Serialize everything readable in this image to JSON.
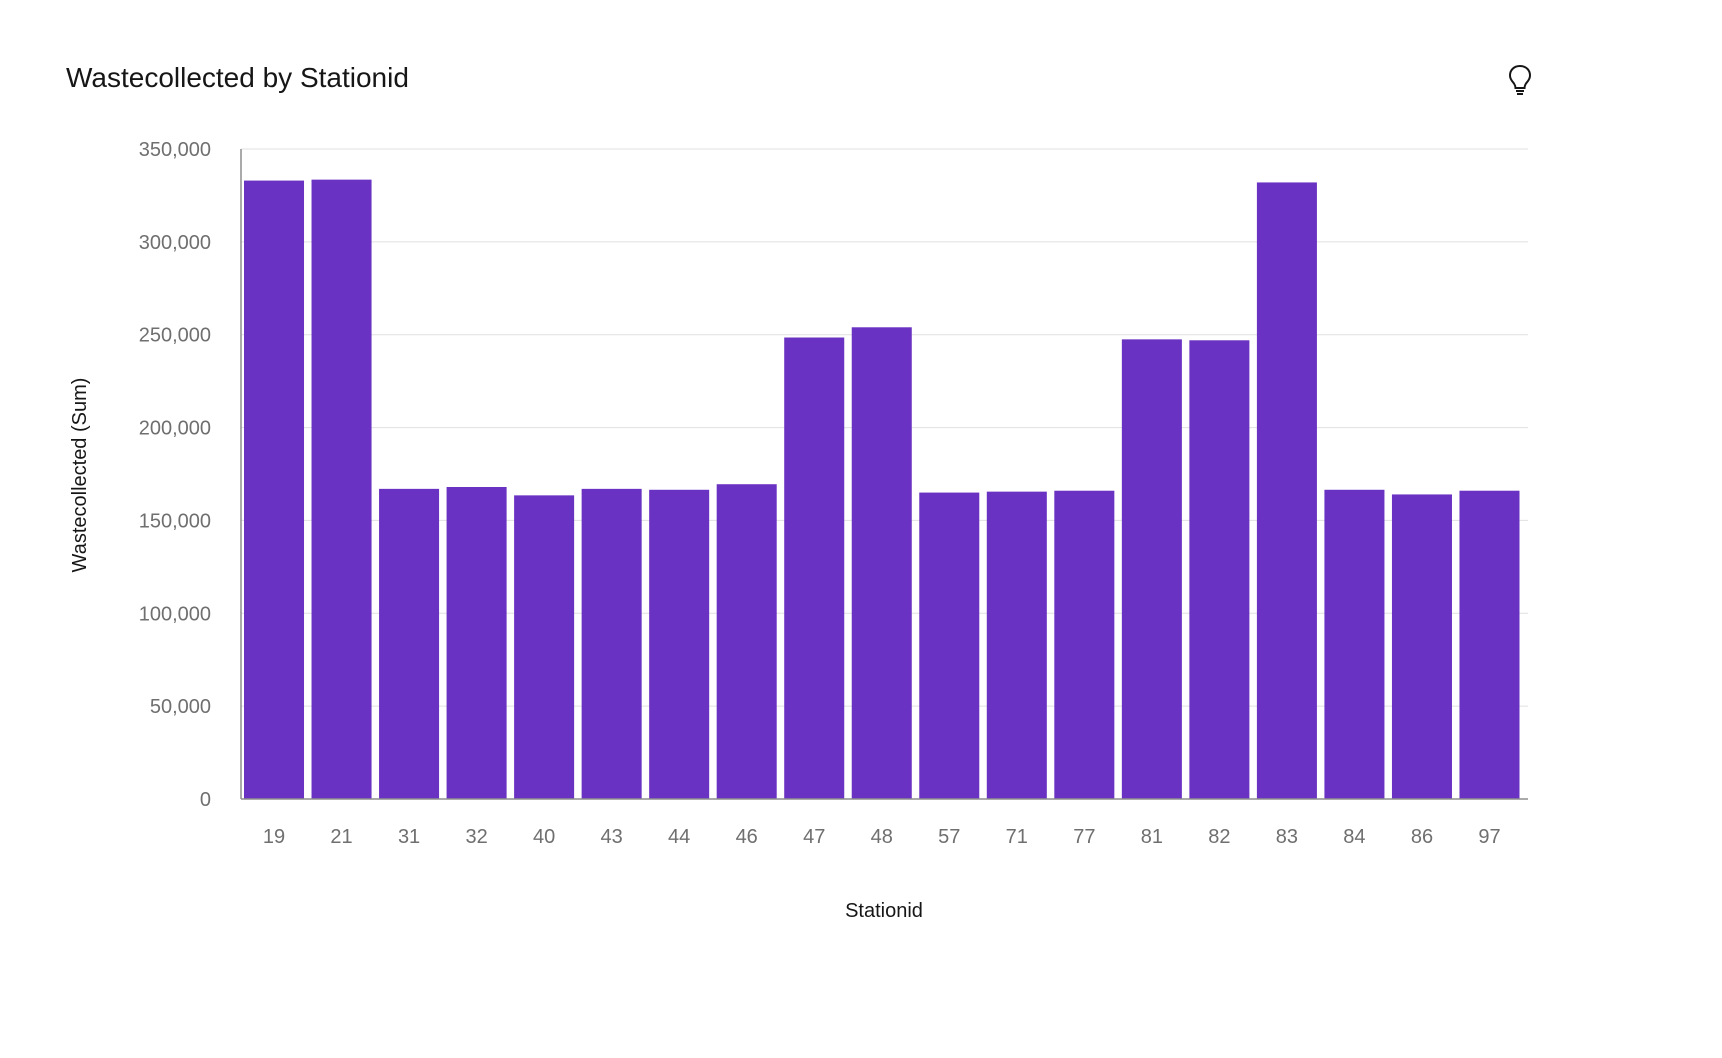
{
  "header": {
    "title": "Wastecollected by Stationid",
    "insight_icon": "lightbulb-icon"
  },
  "colors": {
    "bar": "#6a32c2",
    "grid": "#e0e0e0",
    "axis": "#8d8d8d"
  },
  "chart_data": {
    "type": "bar",
    "title": "Wastecollected by Stationid",
    "xlabel": "Stationid",
    "ylabel": "Wastecollected (Sum)",
    "categories": [
      "19",
      "21",
      "31",
      "32",
      "40",
      "43",
      "44",
      "46",
      "47",
      "48",
      "57",
      "71",
      "77",
      "81",
      "82",
      "83",
      "84",
      "86",
      "97"
    ],
    "values": [
      333000,
      333500,
      167000,
      168000,
      163500,
      167000,
      166500,
      169500,
      248500,
      254000,
      165000,
      165500,
      166000,
      247500,
      247000,
      332000,
      166500,
      164000,
      166000
    ],
    "ylim": [
      0,
      350000
    ],
    "yticks": [
      0,
      50000,
      100000,
      150000,
      200000,
      250000,
      300000,
      350000
    ],
    "ytick_labels": [
      "0",
      "50,000",
      "100,000",
      "150,000",
      "200,000",
      "250,000",
      "300,000",
      "350,000"
    ],
    "grid": true,
    "legend": "none"
  }
}
